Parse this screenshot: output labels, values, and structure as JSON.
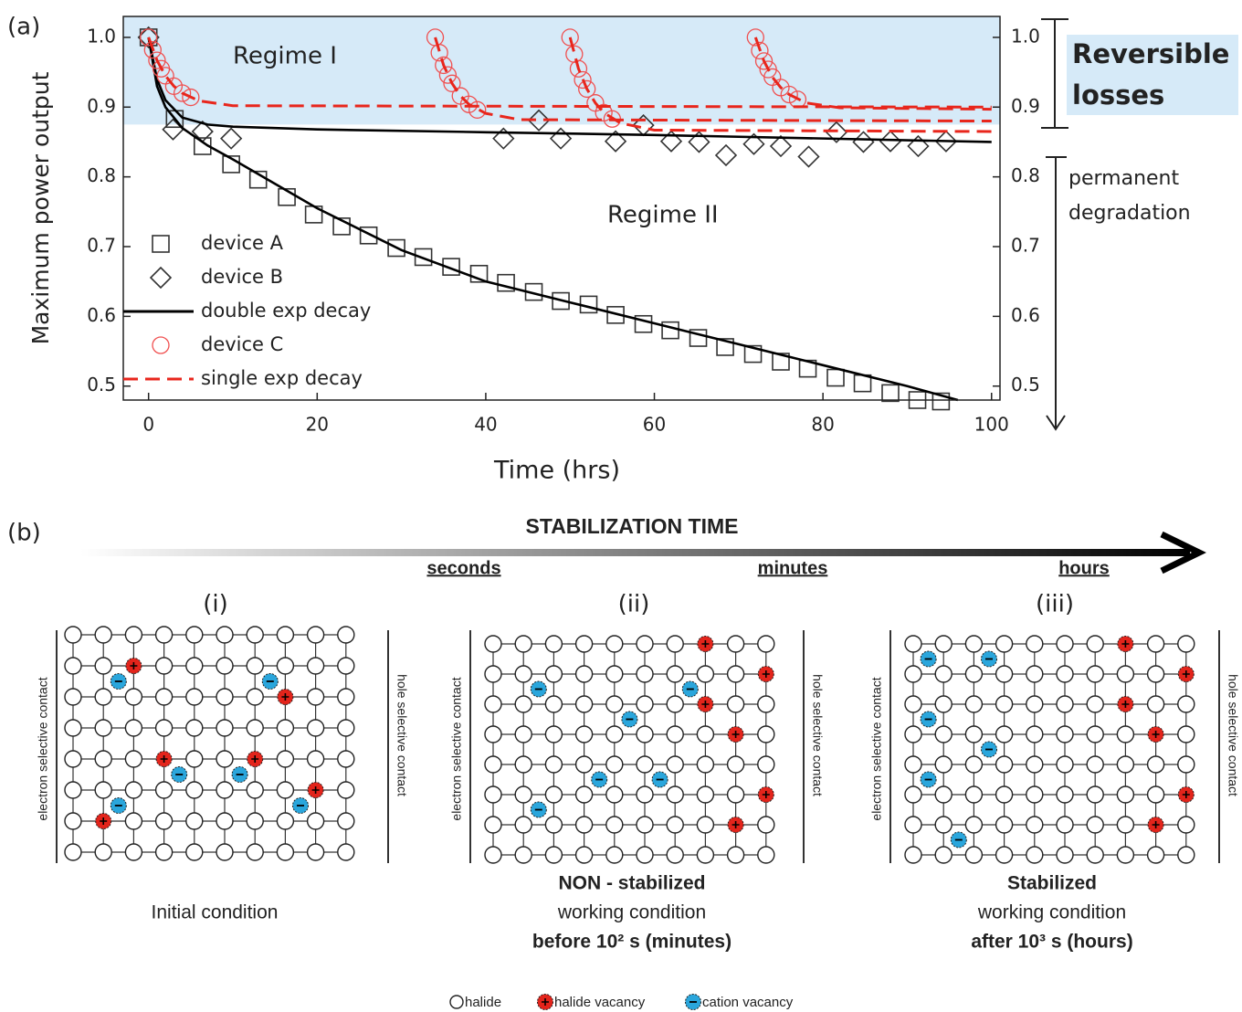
{
  "chart_data": {
    "type": "scatter",
    "panel_label": "(a)",
    "x_label": "Time (hrs)",
    "y_label": "Maximum power output",
    "xlim": [
      -3,
      101
    ],
    "xticks": [
      0,
      20,
      40,
      60,
      80,
      100
    ],
    "ylim": [
      0.48,
      1.03
    ],
    "yticks": [
      0.5,
      0.6,
      0.7,
      0.8,
      0.9,
      {
        "value": 1,
        "label": "1.0"
      }
    ],
    "y2lim": [
      0.48,
      1.03
    ],
    "y2ticks": [
      0.5,
      0.6,
      0.7,
      0.8,
      0.9,
      {
        "value": 1,
        "label": "1.0"
      }
    ],
    "regime_boundary": 0.875,
    "regime_color": "#d6eaf8",
    "annotations": {
      "regime_i": "Regime I",
      "regime_ii": "Regime II",
      "reversible": [
        "Reversible",
        "losses"
      ],
      "permanent": [
        "permanent",
        "degradation"
      ]
    },
    "legend": "lower left",
    "series": [
      {
        "name": "device A",
        "marker": "square",
        "color": "#333333",
        "x": [
          0,
          3.1,
          6.4,
          9.8,
          13,
          16.4,
          19.6,
          22.9,
          26.1,
          29.4,
          32.6,
          35.9,
          39.2,
          42.4,
          45.7,
          48.9,
          52.2,
          55.4,
          58.7,
          61.9,
          65.2,
          68.4,
          71.7,
          75,
          78.2,
          81.5,
          84.7,
          88,
          91.2,
          94
        ],
        "values": [
          1,
          0.883,
          0.844,
          0.818,
          0.796,
          0.771,
          0.746,
          0.729,
          0.716,
          0.698,
          0.685,
          0.671,
          0.661,
          0.648,
          0.635,
          0.622,
          0.617,
          0.602,
          0.589,
          0.58,
          0.569,
          0.556,
          0.546,
          0.535,
          0.525,
          0.512,
          0.504,
          0.49,
          0.48,
          0.478
        ]
      },
      {
        "name": "device B",
        "marker": "diamond",
        "color": "#333333",
        "x": [
          0,
          2.9,
          6.4,
          9.8,
          42.1,
          46.3,
          48.9,
          55.4,
          58.7,
          62,
          65.3,
          68.5,
          71.8,
          75,
          78.3,
          81.6,
          84.8,
          88,
          91.3,
          94.6
        ],
        "values": [
          1,
          0.868,
          0.865,
          0.855,
          0.855,
          0.881,
          0.855,
          0.851,
          0.874,
          0.851,
          0.85,
          0.831,
          0.847,
          0.844,
          0.829,
          0.864,
          0.85,
          0.851,
          0.844,
          0.851
        ]
      },
      {
        "name": "double exp decay",
        "style": "solid",
        "color": "#000000",
        "curves": [
          {
            "x": [
              0,
              1,
              2,
              4,
              7,
              10,
              15,
              20,
              30,
              40,
              50,
              60,
              70,
              80,
              90,
              96
            ],
            "values": [
              1,
              0.93,
              0.9,
              0.87,
              0.845,
              0.825,
              0.79,
              0.755,
              0.695,
              0.65,
              0.62,
              0.59,
              0.56,
              0.53,
              0.5,
              0.48
            ]
          },
          {
            "x": [
              0,
              1,
              2,
              4,
              7,
              10,
              20,
              40,
              60,
              80,
              100
            ],
            "values": [
              1,
              0.94,
              0.91,
              0.885,
              0.875,
              0.872,
              0.868,
              0.864,
              0.86,
              0.855,
              0.85
            ]
          }
        ]
      },
      {
        "name": "device C",
        "marker": "circle",
        "color": "#f05050",
        "x": [
          0,
          0.5,
          1,
          1.5,
          2,
          3,
          4,
          5,
          34,
          34.5,
          35,
          35.5,
          36,
          37,
          38,
          39,
          50,
          50.5,
          51,
          51.5,
          52,
          53,
          54,
          55,
          72,
          72.5,
          73,
          73.5,
          74,
          75,
          76,
          77
        ],
        "values": [
          1,
          0.982,
          0.967,
          0.955,
          0.945,
          0.93,
          0.92,
          0.914,
          1,
          0.978,
          0.96,
          0.946,
          0.934,
          0.916,
          0.904,
          0.896,
          1,
          0.976,
          0.955,
          0.939,
          0.926,
          0.906,
          0.892,
          0.883,
          1,
          0.981,
          0.966,
          0.954,
          0.943,
          0.928,
          0.918,
          0.911
        ]
      },
      {
        "name": "single exp decay",
        "style": "dashed",
        "color": "#e8261c",
        "curves": [
          {
            "x": [
              0,
              1,
              2,
              3,
              4,
              6,
              10,
              100
            ],
            "values": [
              1,
              0.967,
              0.945,
              0.93,
              0.92,
              0.909,
              0.902,
              0.9
            ]
          },
          {
            "x": [
              34,
              35,
              36,
              37,
              38,
              40,
              44,
              100
            ],
            "values": [
              1,
              0.96,
              0.934,
              0.916,
              0.904,
              0.891,
              0.882,
              0.88
            ]
          },
          {
            "x": [
              50,
              51,
              52,
              53,
              54,
              56,
              60,
              100
            ],
            "values": [
              1,
              0.955,
              0.926,
              0.906,
              0.892,
              0.877,
              0.867,
              0.865
            ]
          },
          {
            "x": [
              72,
              73,
              74,
              75,
              76,
              78,
              82,
              100
            ],
            "values": [
              1,
              0.966,
              0.943,
              0.928,
              0.918,
              0.906,
              0.899,
              0.897
            ]
          }
        ]
      }
    ]
  },
  "diagram": {
    "panel_label": "(b)",
    "arrow_title": "STABILIZATION TIME",
    "time_labels": [
      "seconds",
      "minutes",
      "hours"
    ],
    "panels": [
      {
        "numeral": "(i)",
        "left_label": "electron selective contact",
        "right_label": "hole selective contact",
        "caption": [
          {
            "text": "Initial condition",
            "bold": false
          }
        ]
      },
      {
        "numeral": "(ii)",
        "left_label": "electron selective contact",
        "right_label": "hole selective contact",
        "caption": [
          {
            "text": "NON - stabilized",
            "bold": true
          },
          {
            "text": "working condition",
            "bold": false
          },
          {
            "text": "before 10² s (minutes)",
            "bold": true
          }
        ]
      },
      {
        "numeral": "(iii)",
        "left_label": "electron selective contact",
        "right_label": "hole selective contact",
        "caption": [
          {
            "text": "Stabilized",
            "bold": true
          },
          {
            "text": "working condition",
            "bold": false
          },
          {
            "text": "after 10³ s (hours)",
            "bold": true
          }
        ]
      }
    ],
    "legend": [
      "halide",
      "halide vacancy",
      "cation vacancy"
    ]
  }
}
